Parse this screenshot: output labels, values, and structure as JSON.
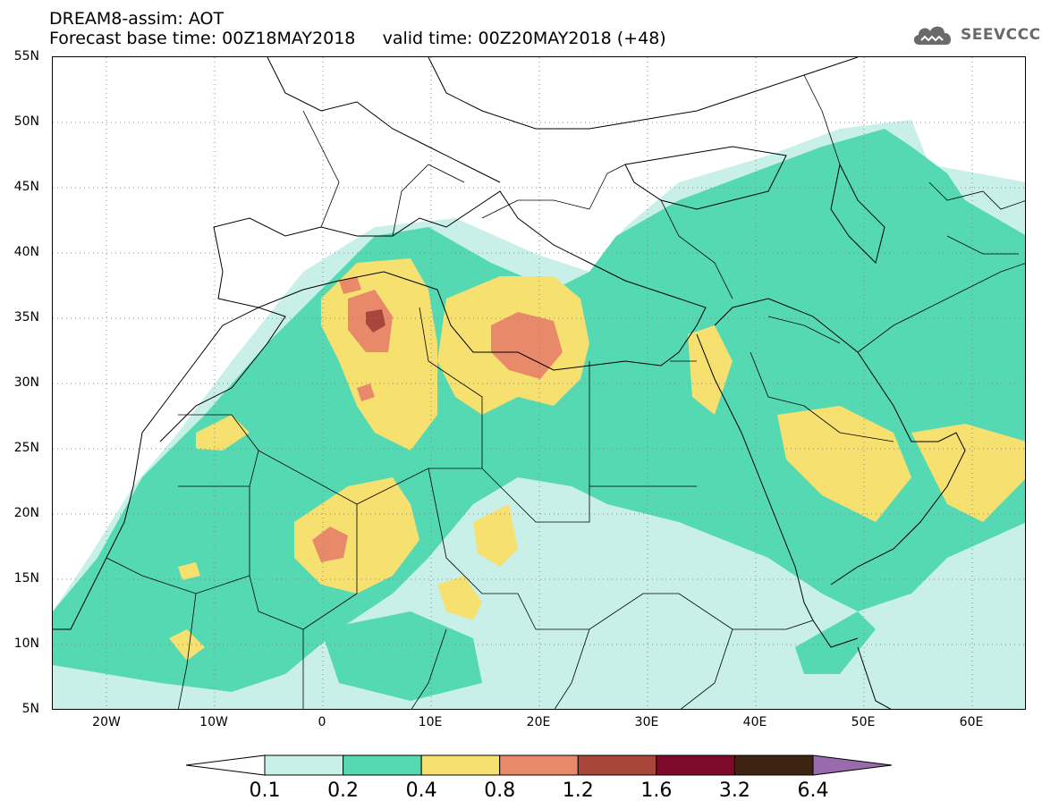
{
  "header": {
    "title_line1": "DREAM8-assim: AOT",
    "title_line2": "Forecast base time: 00Z18MAY2018     valid time: 00Z20MAY2018 (+48)"
  },
  "logo": {
    "text": "SEEVCCC",
    "icon": "cloud-icon"
  },
  "map": {
    "lat_labels": [
      "55N",
      "50N",
      "45N",
      "40N",
      "35N",
      "30N",
      "25N",
      "20N",
      "15N",
      "10N",
      "5N"
    ],
    "lon_labels": [
      "20W",
      "10W",
      "0",
      "10E",
      "20E",
      "30E",
      "40E",
      "50E",
      "60E"
    ],
    "lon_range": [
      -25,
      65
    ],
    "lat_range": [
      5,
      55
    ],
    "grid": "dotted"
  },
  "legend": {
    "labels": [
      "0.1",
      "0.2",
      "0.4",
      "0.8",
      "1.2",
      "1.6",
      "3.2",
      "6.4"
    ],
    "colors": [
      "#ffffff",
      "#c8f0e8",
      "#55d9b2",
      "#f5e070",
      "#e8896a",
      "#a8463c",
      "#7d0a28",
      "#3d2412",
      "#9a6aae"
    ]
  }
}
